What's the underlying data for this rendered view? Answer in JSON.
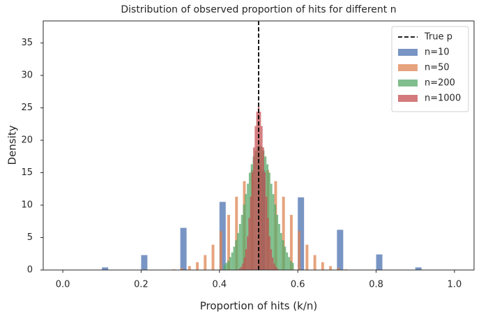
{
  "chart_data": {
    "type": "histogram",
    "title": "Distribution of observed proportion of hits for different n",
    "x_label": "Proportion of hits (k/n)",
    "y_label": "Density",
    "xlim": [
      -0.05,
      1.05
    ],
    "ylim": [
      0,
      38.4
    ],
    "xticks": [
      {
        "value": 0,
        "label": "0.0"
      },
      0.2,
      0.4,
      0.6,
      0.8,
      {
        "value": 1,
        "label": "1.0"
      }
    ],
    "yticks": [
      0,
      5,
      10,
      15,
      20,
      25,
      30,
      35
    ],
    "legend": "upper right",
    "reference_line": {
      "name": "True p",
      "x": 0.5,
      "color": "#000000"
    },
    "series": [
      {
        "name": "n=10",
        "color": "#4c72b0",
        "bins": [
          0.1,
          0.116,
          0.2,
          0.216,
          0.3,
          0.316,
          0.4,
          0.416,
          0.5,
          0.516,
          0.6,
          0.616,
          0.7,
          0.716,
          0.8,
          0.816,
          0.9,
          0.916
        ],
        "values": [
          0.4,
          0,
          2.3,
          0,
          6.5,
          0,
          10.5,
          0,
          15.4,
          0,
          11.2,
          0,
          6.2,
          0,
          2.4,
          0,
          0.4
        ]
      },
      {
        "name": "n=50",
        "color": "#dd8452",
        "bins": [
          0.28,
          0.287,
          0.3,
          0.307,
          0.32,
          0.327,
          0.34,
          0.347,
          0.36,
          0.367,
          0.38,
          0.387,
          0.4,
          0.407,
          0.42,
          0.427,
          0.44,
          0.447,
          0.46,
          0.467,
          0.48,
          0.487,
          0.5,
          0.507,
          0.52,
          0.527,
          0.54,
          0.547,
          0.56,
          0.567,
          0.58,
          0.587,
          0.6,
          0.607,
          0.62,
          0.627,
          0.64,
          0.647,
          0.66,
          0.667,
          0.68,
          0.687,
          0.7,
          0.707,
          0.72,
          0.727
        ],
        "values": [
          0.1,
          0,
          0.3,
          0,
          0.6,
          0,
          1.2,
          0,
          2.3,
          0,
          3.9,
          0,
          6.0,
          0,
          8.5,
          0,
          11.3,
          0,
          13.7,
          0,
          15.4,
          0,
          16.0,
          0,
          15.4,
          0,
          13.7,
          0,
          11.3,
          0,
          8.5,
          0,
          6.0,
          0,
          3.9,
          0,
          2.3,
          0,
          1.2,
          0,
          0.6,
          0,
          0.3,
          0,
          0.1
        ]
      },
      {
        "name": "n=200",
        "color": "#55a868",
        "bins": [
          0.41,
          0.415,
          0.42,
          0.425,
          0.43,
          0.435,
          0.44,
          0.445,
          0.45,
          0.455,
          0.46,
          0.465,
          0.47,
          0.475,
          0.48,
          0.485,
          0.49,
          0.495,
          0.5,
          0.505,
          0.51,
          0.515,
          0.52,
          0.525,
          0.53,
          0.535,
          0.54,
          0.545,
          0.55,
          0.555,
          0.56,
          0.565,
          0.57,
          0.575,
          0.58,
          0.585,
          0.59
        ],
        "values": [
          0.8,
          1.1,
          1.4,
          2.0,
          2.7,
          3.6,
          4.6,
          5.7,
          7.1,
          8.5,
          10.1,
          11.7,
          13.3,
          15.0,
          16.3,
          17.5,
          18.4,
          19.0,
          19.2,
          19.0,
          18.4,
          17.5,
          16.3,
          15.0,
          13.3,
          11.7,
          10.1,
          8.5,
          7.1,
          5.7,
          4.6,
          3.6,
          2.7,
          2.0,
          1.4,
          1.1
        ]
      },
      {
        "name": "n=1000",
        "color": "#c44e52",
        "bins": [
          0.45,
          0.454,
          0.458,
          0.462,
          0.466,
          0.47,
          0.474,
          0.478,
          0.482,
          0.486,
          0.49,
          0.494,
          0.498,
          0.502,
          0.506,
          0.51,
          0.514,
          0.518,
          0.522,
          0.526,
          0.53,
          0.534,
          0.538,
          0.542,
          0.546,
          0.55
        ],
        "values": [
          0.25,
          0.5,
          1.0,
          1.9,
          3.2,
          5.2,
          8.0,
          11.3,
          15.1,
          18.9,
          22.2,
          24.4,
          25.2,
          24.4,
          22.2,
          18.9,
          15.1,
          11.3,
          8.0,
          5.2,
          3.2,
          1.9,
          1.0,
          0.5,
          0.25
        ]
      }
    ]
  }
}
